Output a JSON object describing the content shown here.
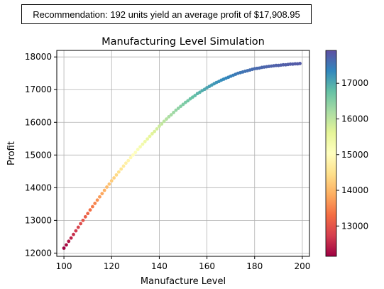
{
  "recommendation": "Recommendation: 192 units yield an average profit of $17,908.95",
  "chart_data": {
    "type": "scatter",
    "title": "Manufacturing Level Simulation",
    "xlabel": "Manufacture Level",
    "ylabel": "Profit",
    "xlim": [
      97,
      203
    ],
    "ylim": [
      11900,
      18200
    ],
    "xticks": [
      100,
      120,
      140,
      160,
      180,
      200
    ],
    "yticks": [
      12000,
      13000,
      14000,
      15000,
      16000,
      17000,
      18000
    ],
    "grid": true,
    "colormap": "Spectral",
    "colorbar": {
      "min": 12150,
      "max": 17920,
      "ticks": [
        13000,
        14000,
        15000,
        16000,
        17000
      ]
    },
    "x": [
      100,
      101,
      102,
      103,
      104,
      105,
      106,
      107,
      108,
      109,
      110,
      111,
      112,
      113,
      114,
      115,
      116,
      117,
      118,
      119,
      120,
      121,
      122,
      123,
      124,
      125,
      126,
      127,
      128,
      129,
      130,
      131,
      132,
      133,
      134,
      135,
      136,
      137,
      138,
      139,
      140,
      141,
      142,
      143,
      144,
      145,
      146,
      147,
      148,
      149,
      150,
      151,
      152,
      153,
      154,
      155,
      156,
      157,
      158,
      159,
      160,
      161,
      162,
      163,
      164,
      165,
      166,
      167,
      168,
      169,
      170,
      171,
      172,
      173,
      174,
      175,
      176,
      177,
      178,
      179,
      180,
      181,
      182,
      183,
      184,
      185,
      186,
      187,
      188,
      189,
      190,
      191,
      192,
      193,
      194,
      195,
      196,
      197,
      198,
      199
    ],
    "y": [
      12150,
      12250,
      12360,
      12460,
      12570,
      12680,
      12790,
      12900,
      13000,
      13110,
      13210,
      13320,
      13420,
      13520,
      13620,
      13720,
      13820,
      13920,
      14020,
      14110,
      14210,
      14300,
      14390,
      14480,
      14570,
      14660,
      14750,
      14830,
      14920,
      15000,
      15080,
      15170,
      15250,
      15330,
      15410,
      15490,
      15570,
      15650,
      15720,
      15800,
      15880,
      15950,
      16030,
      16100,
      16170,
      16230,
      16300,
      16370,
      16430,
      16490,
      16550,
      16610,
      16660,
      16720,
      16770,
      16820,
      16880,
      16920,
      16970,
      17010,
      17060,
      17100,
      17140,
      17180,
      17220,
      17250,
      17290,
      17320,
      17350,
      17380,
      17410,
      17440,
      17470,
      17500,
      17520,
      17540,
      17560,
      17580,
      17600,
      17620,
      17640,
      17650,
      17660,
      17680,
      17690,
      17700,
      17710,
      17720,
      17730,
      17740,
      17740,
      17750,
      17760,
      17760,
      17770,
      17780,
      17780,
      17790,
      17790,
      17800
    ]
  }
}
